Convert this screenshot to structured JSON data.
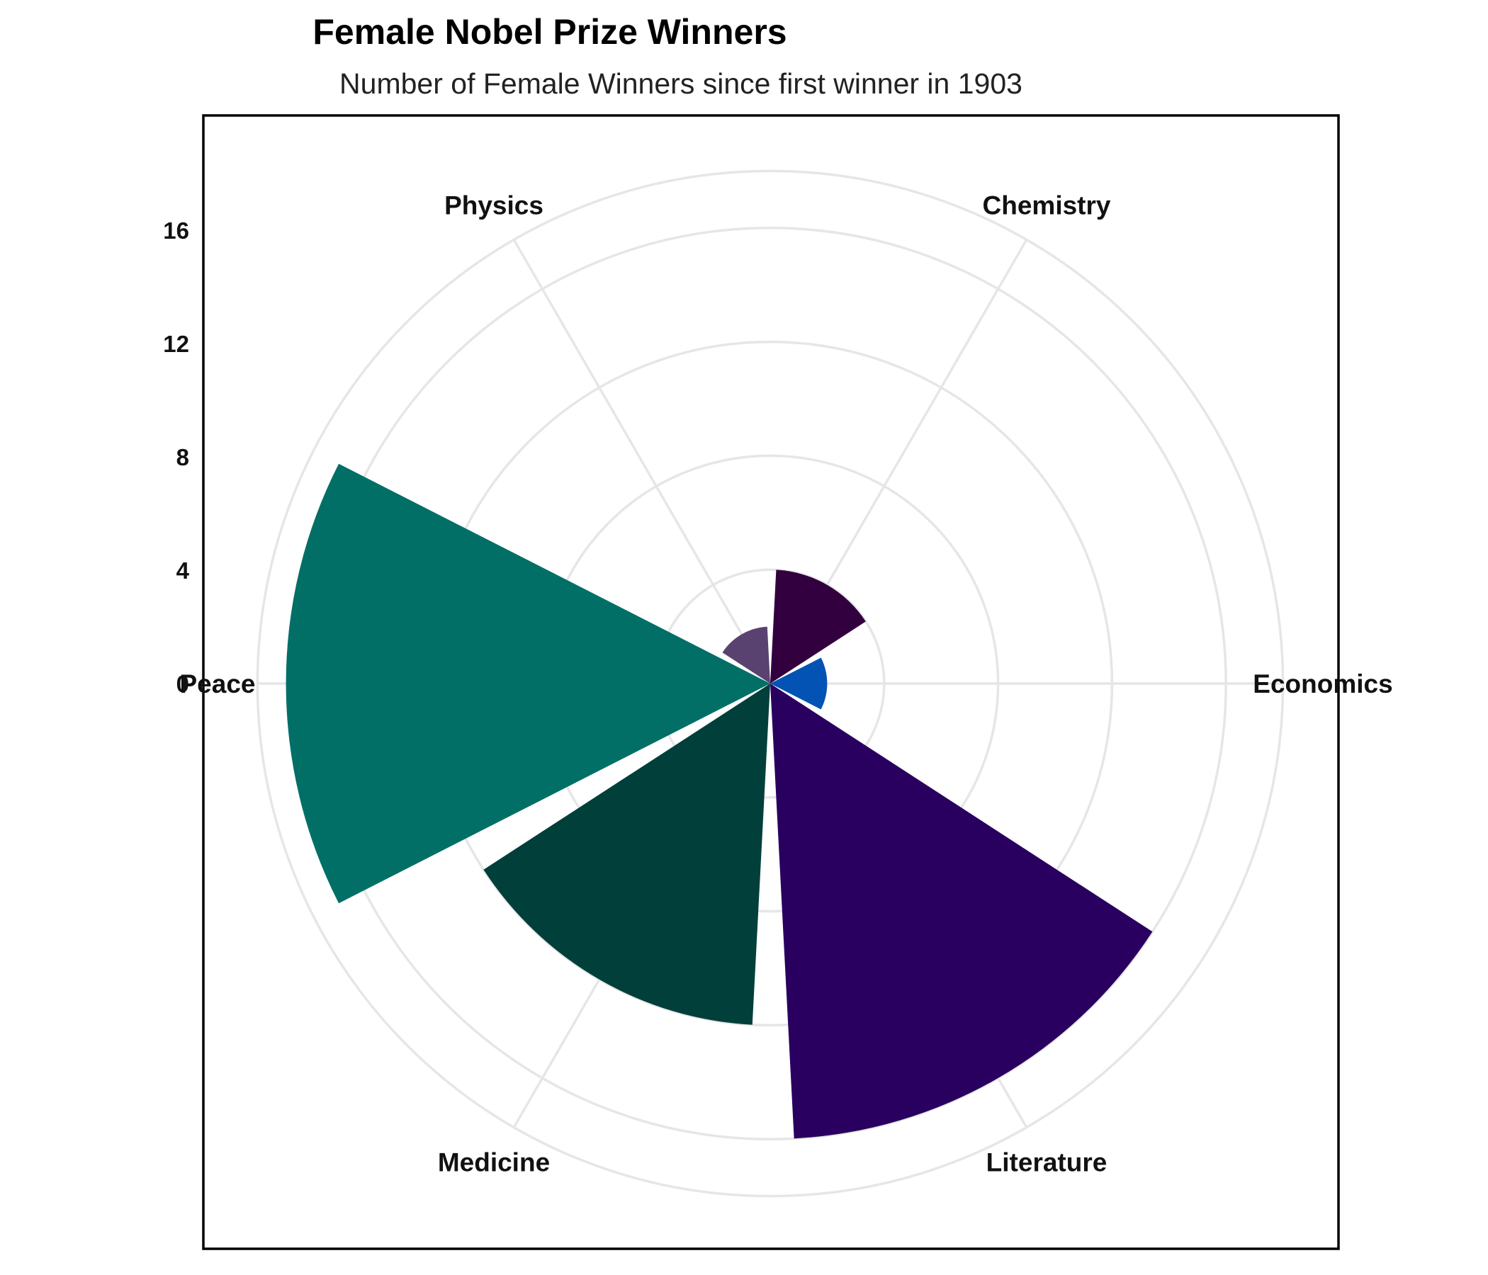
{
  "chart_data": {
    "type": "bar",
    "subtype": "polar",
    "title": "Female Nobel Prize Winners",
    "subtitle": "Number of Female Winners since first winner in 1903",
    "categories": [
      "Economics",
      "Chemistry",
      "Physics",
      "Peace",
      "Medicine",
      "Literature"
    ],
    "values": [
      2,
      4,
      2,
      17,
      12,
      16
    ],
    "colors": [
      "#0353b4",
      "#33003f",
      "#5a4270",
      "#026f67",
      "#003f3a",
      "#29005f"
    ],
    "radial_ticks": [
      "0",
      "4",
      "8",
      "12",
      "16"
    ],
    "radial_range": [
      0,
      18
    ],
    "grid": true,
    "legend": false
  }
}
